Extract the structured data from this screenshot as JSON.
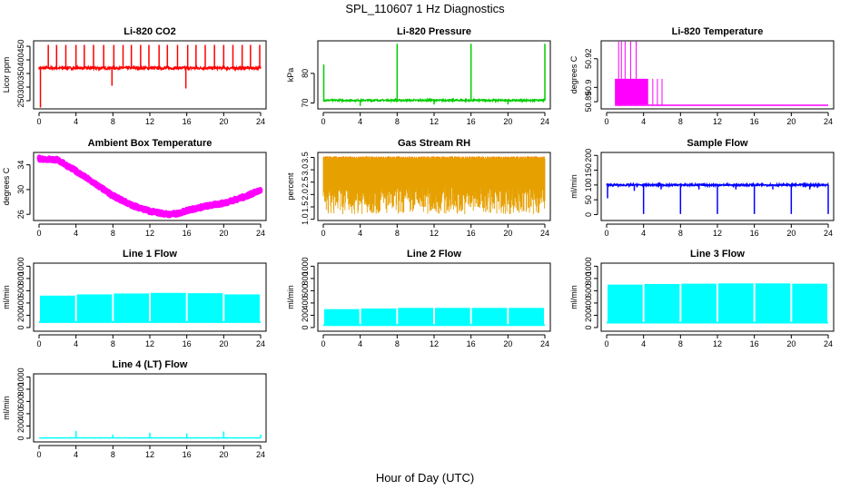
{
  "figure": {
    "title": "SPL_110607  1 Hz Diagnostics",
    "xlabel": "Hour of Day (UTC)"
  },
  "chart_data": [
    {
      "id": "co2",
      "type": "line",
      "title": "Li-820 CO2",
      "ylabel": "Licor ppm",
      "color": "#ff0000",
      "xlim": [
        0,
        24
      ],
      "xticks": [
        0,
        4,
        8,
        12,
        16,
        20,
        24
      ],
      "ylim": [
        220,
        470
      ],
      "yticks": [
        250,
        300,
        350,
        400,
        450
      ],
      "baseline": 370,
      "noise": 5,
      "spikes": [
        {
          "x": 0.15,
          "y": 225
        },
        {
          "x": 1.0,
          "y": 455
        },
        {
          "x": 1.9,
          "y": 455
        },
        {
          "x": 2.9,
          "y": 455
        },
        {
          "x": 4.0,
          "y": 455
        },
        {
          "x": 4.9,
          "y": 455
        },
        {
          "x": 5.9,
          "y": 455
        },
        {
          "x": 7.0,
          "y": 455
        },
        {
          "x": 7.9,
          "y": 305
        },
        {
          "x": 8.1,
          "y": 455
        },
        {
          "x": 9.1,
          "y": 455
        },
        {
          "x": 10.0,
          "y": 455
        },
        {
          "x": 11.0,
          "y": 455
        },
        {
          "x": 11.9,
          "y": 455
        },
        {
          "x": 13.0,
          "y": 455
        },
        {
          "x": 13.9,
          "y": 455
        },
        {
          "x": 15.0,
          "y": 455
        },
        {
          "x": 15.9,
          "y": 295
        },
        {
          "x": 16.1,
          "y": 455
        },
        {
          "x": 17.0,
          "y": 455
        },
        {
          "x": 18.0,
          "y": 455
        },
        {
          "x": 19.0,
          "y": 455
        },
        {
          "x": 20.0,
          "y": 455
        },
        {
          "x": 21.0,
          "y": 455
        },
        {
          "x": 22.0,
          "y": 455
        },
        {
          "x": 22.9,
          "y": 455
        },
        {
          "x": 23.9,
          "y": 455
        }
      ]
    },
    {
      "id": "pressure",
      "type": "line",
      "title": "Li-820 Pressure",
      "ylabel": "kPa",
      "color": "#00cc00",
      "xlim": [
        0,
        24
      ],
      "xticks": [
        0,
        4,
        8,
        12,
        16,
        20,
        24
      ],
      "ylim": [
        68,
        91
      ],
      "yticks": [
        70,
        80
      ],
      "baseline": 70.9,
      "noise": 0.25,
      "spikes": [
        {
          "x": 0.05,
          "y": 83
        },
        {
          "x": 4.0,
          "y": 69
        },
        {
          "x": 8.0,
          "y": 90
        },
        {
          "x": 12.0,
          "y": 69.5
        },
        {
          "x": 16.0,
          "y": 90
        },
        {
          "x": 20.0,
          "y": 69.5
        },
        {
          "x": 24.0,
          "y": 90
        }
      ]
    },
    {
      "id": "licor_temp",
      "type": "line",
      "title": "Li-820 Temperature",
      "ylabel": "degrees C",
      "color": "#ff00ff",
      "xlim": [
        0,
        24
      ],
      "xticks": [
        0,
        4,
        8,
        12,
        16,
        20,
        24
      ],
      "ylim": [
        50.885,
        50.9325
      ],
      "yticks": [
        50.89,
        50.9,
        50.92
      ],
      "ytick_labels": [
        "50.89",
        "50.9",
        "50.92"
      ],
      "band": {
        "from": 0.9,
        "to": 4.5,
        "low": 50.888,
        "high": 50.906
      },
      "tail": {
        "from": 4.5,
        "to": 24,
        "value": 50.8875
      },
      "spikes": [
        {
          "x": 1.3,
          "y": 50.932
        },
        {
          "x": 1.6,
          "y": 50.932
        },
        {
          "x": 2.0,
          "y": 50.932
        },
        {
          "x": 2.6,
          "y": 50.932
        },
        {
          "x": 3.2,
          "y": 50.932
        },
        {
          "x": 3.9,
          "y": 50.906
        },
        {
          "x": 5.0,
          "y": 50.906
        },
        {
          "x": 5.5,
          "y": 50.906
        },
        {
          "x": 6.0,
          "y": 50.906
        }
      ]
    },
    {
      "id": "box_temp",
      "type": "line",
      "title": "Ambient Box Temperature",
      "ylabel": "degrees C",
      "color": "#ff00ff",
      "xlim": [
        0,
        24
      ],
      "xticks": [
        0,
        4,
        8,
        12,
        16,
        20,
        24
      ],
      "ylim": [
        25,
        36
      ],
      "yticks": [
        26,
        30,
        34
      ],
      "knots": [
        [
          0,
          35.0
        ],
        [
          2,
          34.8
        ],
        [
          4,
          33.0
        ],
        [
          6,
          31.0
        ],
        [
          8,
          29.0
        ],
        [
          10,
          27.5
        ],
        [
          12,
          26.5
        ],
        [
          14,
          26.0
        ],
        [
          15,
          26.1
        ],
        [
          16,
          26.6
        ],
        [
          18,
          27.3
        ],
        [
          20,
          27.8
        ],
        [
          22,
          28.7
        ],
        [
          24,
          29.9
        ]
      ],
      "noise": 0.3
    },
    {
      "id": "rh",
      "type": "band",
      "title": "Gas Stream RH",
      "ylabel": "percent",
      "color": "#e6a000",
      "edge": "#ff7f00",
      "xlim": [
        0,
        24
      ],
      "xticks": [
        0,
        4,
        8,
        12,
        16,
        20,
        24
      ],
      "ylim": [
        0.95,
        3.7
      ],
      "yticks": [
        1.0,
        1.5,
        2.0,
        2.5,
        3.0,
        3.5
      ],
      "ytick_labels": [
        "1.0",
        "1.5",
        "2.0",
        "2.5",
        "3.0",
        "3.5"
      ],
      "top": 3.5,
      "bottom": 1.2
    },
    {
      "id": "sample_flow",
      "type": "line",
      "title": "Sample Flow",
      "ylabel": "ml/min",
      "color": "#0000ff",
      "xlim": [
        0,
        24
      ],
      "xticks": [
        0,
        4,
        8,
        12,
        16,
        20,
        24
      ],
      "ylim": [
        -20,
        210
      ],
      "yticks": [
        0,
        50,
        100,
        150,
        200
      ],
      "baseline": 100,
      "noise": 3,
      "spikes": [
        {
          "x": 0.1,
          "y": 55
        },
        {
          "x": 4.0,
          "y": 2
        },
        {
          "x": 8.0,
          "y": 2
        },
        {
          "x": 12.0,
          "y": 2
        },
        {
          "x": 16.0,
          "y": 2
        },
        {
          "x": 20.0,
          "y": 2
        },
        {
          "x": 24.0,
          "y": 2
        },
        {
          "x": 3.0,
          "y": 80
        },
        {
          "x": 5.9,
          "y": 85
        },
        {
          "x": 10.0,
          "y": 85
        },
        {
          "x": 14.0,
          "y": 85
        },
        {
          "x": 18.0,
          "y": 85
        },
        {
          "x": 22.0,
          "y": 85
        }
      ]
    },
    {
      "id": "line1",
      "type": "bars",
      "title": "Line 1 Flow",
      "ylabel": "ml/min",
      "color": "#00ffff",
      "xlim": [
        0,
        24
      ],
      "xticks": [
        0,
        4,
        8,
        12,
        16,
        20,
        24
      ],
      "ylim": [
        -60,
        1050
      ],
      "yticks": [
        0,
        200,
        400,
        600,
        800,
        1000
      ],
      "low": 90,
      "segments": [
        [
          0,
          4,
          520
        ],
        [
          4,
          8,
          540
        ],
        [
          8,
          12,
          555
        ],
        [
          12,
          16,
          565
        ],
        [
          16,
          20,
          560
        ],
        [
          20,
          24,
          540
        ]
      ]
    },
    {
      "id": "line2",
      "type": "bars",
      "title": "Line 2 Flow",
      "ylabel": "ml/min",
      "color": "#00ffff",
      "xlim": [
        0,
        24
      ],
      "xticks": [
        0,
        4,
        8,
        12,
        16,
        20,
        24
      ],
      "ylim": [
        -60,
        1050
      ],
      "yticks": [
        0,
        200,
        400,
        600,
        800,
        1000
      ],
      "low": 40,
      "segments": [
        [
          0,
          4,
          300
        ],
        [
          4,
          8,
          310
        ],
        [
          8,
          12,
          320
        ],
        [
          12,
          16,
          320
        ],
        [
          16,
          20,
          320
        ],
        [
          20,
          24,
          320
        ]
      ]
    },
    {
      "id": "line3",
      "type": "bars",
      "title": "Line 3 Flow",
      "ylabel": "ml/min",
      "color": "#00ffff",
      "xlim": [
        0,
        24
      ],
      "xticks": [
        0,
        4,
        8,
        12,
        16,
        20,
        24
      ],
      "ylim": [
        -60,
        1050
      ],
      "yticks": [
        0,
        200,
        400,
        600,
        800,
        1000
      ],
      "low": 80,
      "segments": [
        [
          0,
          4,
          700
        ],
        [
          4,
          8,
          710
        ],
        [
          8,
          12,
          715
        ],
        [
          12,
          16,
          720
        ],
        [
          16,
          20,
          720
        ],
        [
          20,
          24,
          715
        ]
      ]
    },
    {
      "id": "line4",
      "type": "line",
      "title": "Line 4 (LT) Flow",
      "ylabel": "ml/min",
      "color": "#00ffff",
      "xlim": [
        0,
        24
      ],
      "xticks": [
        0,
        4,
        8,
        12,
        16,
        20,
        24
      ],
      "ylim": [
        -60,
        1050
      ],
      "yticks": [
        0,
        200,
        400,
        600,
        800,
        1000
      ],
      "baseline": 5,
      "noise": 2,
      "spikes": [
        {
          "x": 4.0,
          "y": 120
        },
        {
          "x": 8.0,
          "y": 60
        },
        {
          "x": 12.0,
          "y": 90
        },
        {
          "x": 16.0,
          "y": 80
        },
        {
          "x": 20.0,
          "y": 110
        },
        {
          "x": 24.0,
          "y": 60
        }
      ]
    }
  ]
}
